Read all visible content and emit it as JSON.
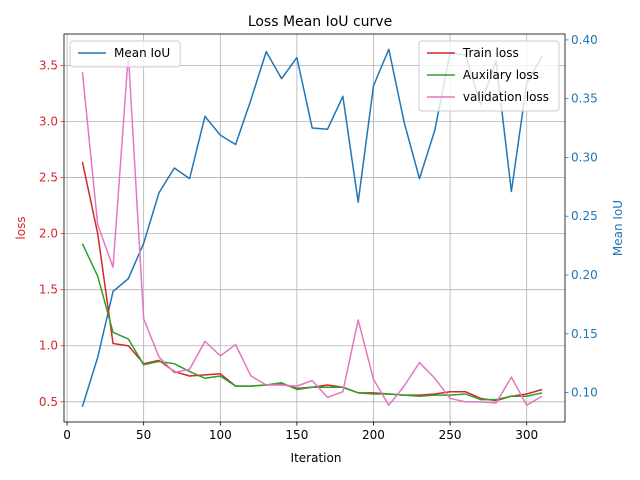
{
  "chart_data": {
    "type": "line",
    "title": "Loss Mean IoU curve",
    "xlabel": "Iteration",
    "ylabel_left": "loss",
    "ylabel_right": "Mean IoU",
    "xlim": [
      -2,
      325
    ],
    "ylim_left": [
      0.32,
      3.78
    ],
    "ylim_right": [
      0.075,
      0.405
    ],
    "xticks": [
      0,
      50,
      100,
      150,
      200,
      250,
      300
    ],
    "yticks_left": [
      0.5,
      1.0,
      1.5,
      2.0,
      2.5,
      3.0,
      3.5
    ],
    "yticks_left_labels": [
      "0.5",
      "1.0",
      "1.5",
      "2.0",
      "2.5",
      "3.0",
      "3.5"
    ],
    "yticks_right": [
      0.1,
      0.15,
      0.2,
      0.25,
      0.3,
      0.35,
      0.4
    ],
    "yticks_right_labels": [
      "0.10",
      "0.15",
      "0.20",
      "0.25",
      "0.30",
      "0.35",
      "0.40"
    ],
    "grid": true,
    "colors": {
      "left_axis": "#d62728",
      "right_axis": "#1f77b4"
    },
    "x": [
      10,
      20,
      30,
      40,
      50,
      60,
      70,
      80,
      90,
      100,
      110,
      120,
      130,
      140,
      150,
      160,
      170,
      180,
      190,
      200,
      210,
      220,
      230,
      240,
      250,
      260,
      270,
      280,
      290,
      300,
      310
    ],
    "series_left": [
      {
        "name": "Train loss",
        "color": "#d62728",
        "values": [
          2.64,
          2.0,
          1.02,
          1.0,
          0.84,
          0.87,
          0.77,
          0.73,
          0.74,
          0.75,
          0.64,
          0.64,
          0.65,
          0.66,
          0.62,
          0.63,
          0.65,
          0.63,
          0.58,
          0.58,
          0.57,
          0.56,
          0.56,
          0.57,
          0.59,
          0.59,
          0.53,
          0.51,
          0.55,
          0.57,
          0.61
        ]
      },
      {
        "name": "Auxilary loss",
        "color": "#2ca02c",
        "values": [
          1.91,
          1.62,
          1.12,
          1.06,
          0.83,
          0.86,
          0.84,
          0.77,
          0.71,
          0.73,
          0.64,
          0.64,
          0.65,
          0.67,
          0.61,
          0.63,
          0.63,
          0.63,
          0.58,
          0.57,
          0.57,
          0.56,
          0.55,
          0.56,
          0.56,
          0.57,
          0.52,
          0.52,
          0.55,
          0.55,
          0.58
        ]
      },
      {
        "name": "validation loss",
        "color": "#e377c2",
        "values": [
          3.44,
          2.08,
          1.7,
          3.6,
          1.24,
          0.9,
          0.76,
          0.79,
          1.04,
          0.91,
          1.01,
          0.73,
          0.65,
          0.65,
          0.64,
          0.69,
          0.54,
          0.59,
          1.23,
          0.7,
          0.47,
          0.64,
          0.85,
          0.71,
          0.53,
          0.5,
          0.5,
          0.49,
          0.72,
          0.47,
          0.55
        ]
      }
    ],
    "series_right": [
      {
        "name": "Mean IoU",
        "color": "#1f77b4",
        "values": [
          0.088,
          0.13,
          0.186,
          0.197,
          0.227,
          0.27,
          0.291,
          0.282,
          0.335,
          0.319,
          0.311,
          0.349,
          0.39,
          0.367,
          0.385,
          0.325,
          0.324,
          0.352,
          0.262,
          0.361,
          0.392,
          0.33,
          0.282,
          0.323,
          0.389,
          0.387,
          0.345,
          0.382,
          0.271,
          0.363,
          0.386
        ]
      }
    ],
    "legend_left_placement": "top-left",
    "legend_right_placement": "top-right"
  }
}
